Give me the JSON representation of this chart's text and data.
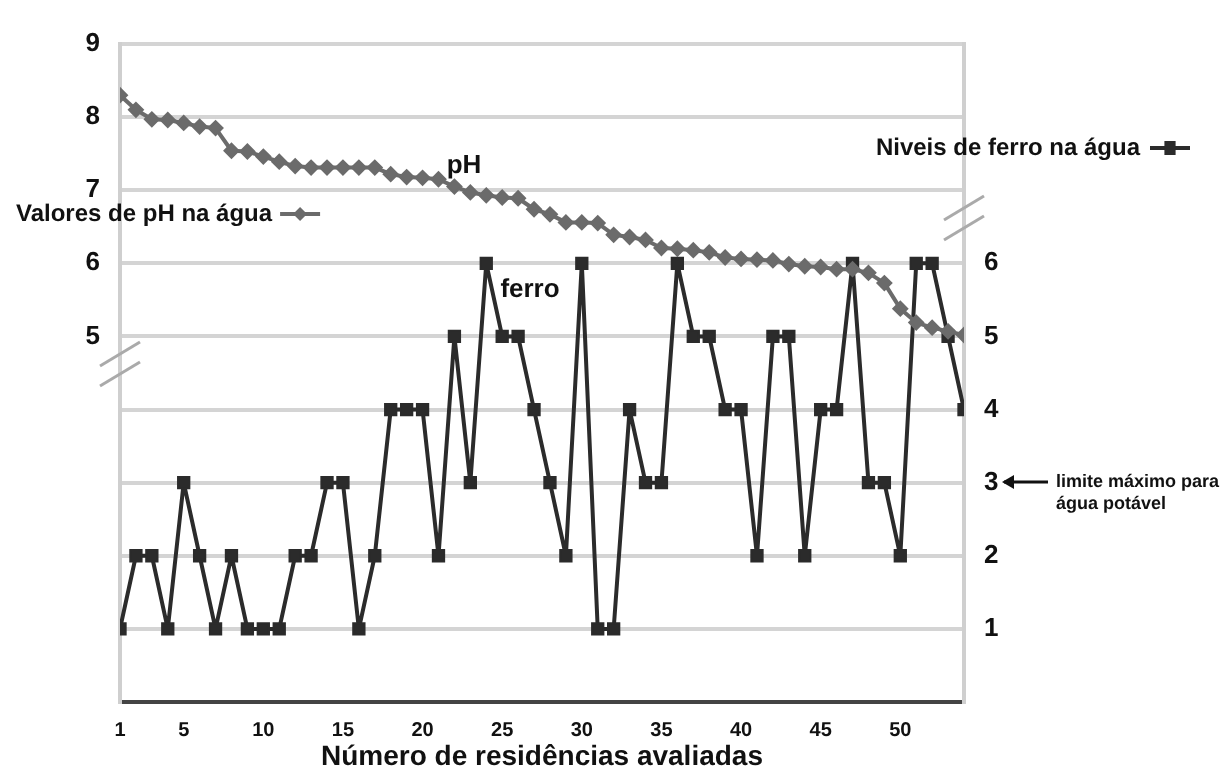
{
  "chart_data": {
    "type": "line",
    "xlabel": "Número de residências avaliadas",
    "x": [
      1,
      2,
      3,
      4,
      5,
      6,
      7,
      8,
      9,
      10,
      11,
      12,
      13,
      14,
      15,
      16,
      17,
      18,
      19,
      20,
      21,
      22,
      23,
      24,
      25,
      26,
      27,
      28,
      29,
      30,
      31,
      32,
      33,
      34,
      35,
      36,
      37,
      38,
      39,
      40,
      41,
      42,
      43,
      44,
      45,
      46,
      47,
      48,
      49,
      50,
      51,
      52,
      53,
      54
    ],
    "xlim": [
      1,
      54
    ],
    "xticks": [
      1,
      5,
      10,
      15,
      20,
      25,
      30,
      35,
      40,
      45,
      50
    ],
    "ylim": [
      0,
      9
    ],
    "yticks": [
      5,
      6,
      7,
      8,
      9
    ],
    "y2lim": [
      0,
      9
    ],
    "y2ticks": [
      1,
      2,
      3,
      4,
      5,
      6
    ],
    "grid": "y",
    "legend": "right",
    "series": [
      {
        "name": "Valores de pH na água",
        "color": "#6b6b6b",
        "marker": "diamond",
        "axis": "y",
        "values": [
          8.3,
          8.1,
          7.97,
          7.96,
          7.92,
          7.87,
          7.85,
          7.54,
          7.53,
          7.46,
          7.39,
          7.33,
          7.31,
          7.31,
          7.31,
          7.31,
          7.31,
          7.22,
          7.18,
          7.17,
          7.15,
          7.05,
          6.97,
          6.93,
          6.9,
          6.89,
          6.74,
          6.67,
          6.56,
          6.56,
          6.55,
          6.39,
          6.36,
          6.32,
          6.21,
          6.2,
          6.18,
          6.15,
          6.08,
          6.06,
          6.05,
          6.04,
          5.99,
          5.96,
          5.95,
          5.92,
          5.92,
          5.87,
          5.73,
          5.38,
          5.19,
          5.12,
          5.07,
          5.02
        ]
      },
      {
        "name": "Niveis de ferro na água",
        "color": "#2b2b2b",
        "marker": "square",
        "axis": "y2",
        "values": [
          1,
          2,
          2,
          1,
          3,
          2,
          1,
          2,
          1,
          1,
          1,
          2,
          2,
          3,
          3,
          1,
          2,
          4,
          4,
          4,
          2,
          5,
          3,
          6,
          5,
          5,
          4,
          3,
          2,
          6,
          1,
          1,
          4,
          3,
          3,
          6,
          5,
          5,
          4,
          4,
          2,
          5,
          5,
          2,
          4,
          4,
          6,
          3,
          3,
          2,
          6,
          6,
          5,
          4
        ]
      }
    ],
    "annotations": [
      "pH",
      "ferro",
      "limite máximo para água potável"
    ]
  }
}
